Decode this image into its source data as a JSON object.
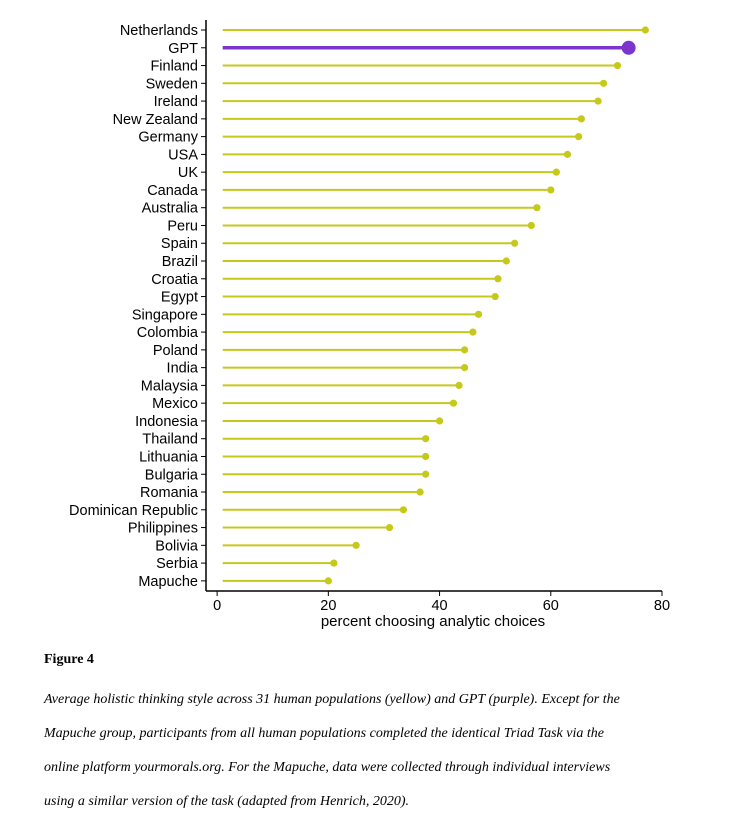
{
  "chart_data": {
    "type": "lollipop",
    "title": "",
    "xlabel": "percent choosing analytic choices",
    "ylabel": "",
    "xlim": [
      -2,
      80
    ],
    "xticks": [
      0,
      20,
      40,
      60,
      80
    ],
    "categories": [
      "Netherlands",
      "GPT",
      "Finland",
      "Sweden",
      "Ireland",
      "New Zealand",
      "Germany",
      "USA",
      "UK",
      "Canada",
      "Australia",
      "Peru",
      "Spain",
      "Brazil",
      "Croatia",
      "Egypt",
      "Singapore",
      "Colombia",
      "Poland",
      "India",
      "Malaysia",
      "Mexico",
      "Indonesia",
      "Thailand",
      "Lithuania",
      "Bulgaria",
      "Romania",
      "Dominican Republic",
      "Philippines",
      "Bolivia",
      "Serbia",
      "Mapuche"
    ],
    "values": [
      77,
      74,
      72,
      69.5,
      68.5,
      65.5,
      65,
      63,
      61,
      60,
      57.5,
      56.5,
      53.5,
      52,
      50.5,
      50,
      47,
      46,
      44.5,
      44.5,
      43.5,
      42.5,
      40,
      37.5,
      37.5,
      37.5,
      36.5,
      33.5,
      31,
      25,
      21,
      20
    ],
    "series_start": 1,
    "highlight": "GPT",
    "colors": {
      "human": "#c6c81c",
      "gpt": "#7b34cc"
    }
  },
  "figure": {
    "label": "Figure 4",
    "caption_lines": [
      "Average holistic thinking style across 31 human populations (yellow) and GPT (purple). Except for the",
      "Mapuche group, participants from all human populations completed the identical Triad Task via the",
      "online platform yourmorals.org. For the Mapuche, data were collected through individual interviews",
      "using a similar version of the task (adapted from Henrich, 2020)."
    ]
  }
}
